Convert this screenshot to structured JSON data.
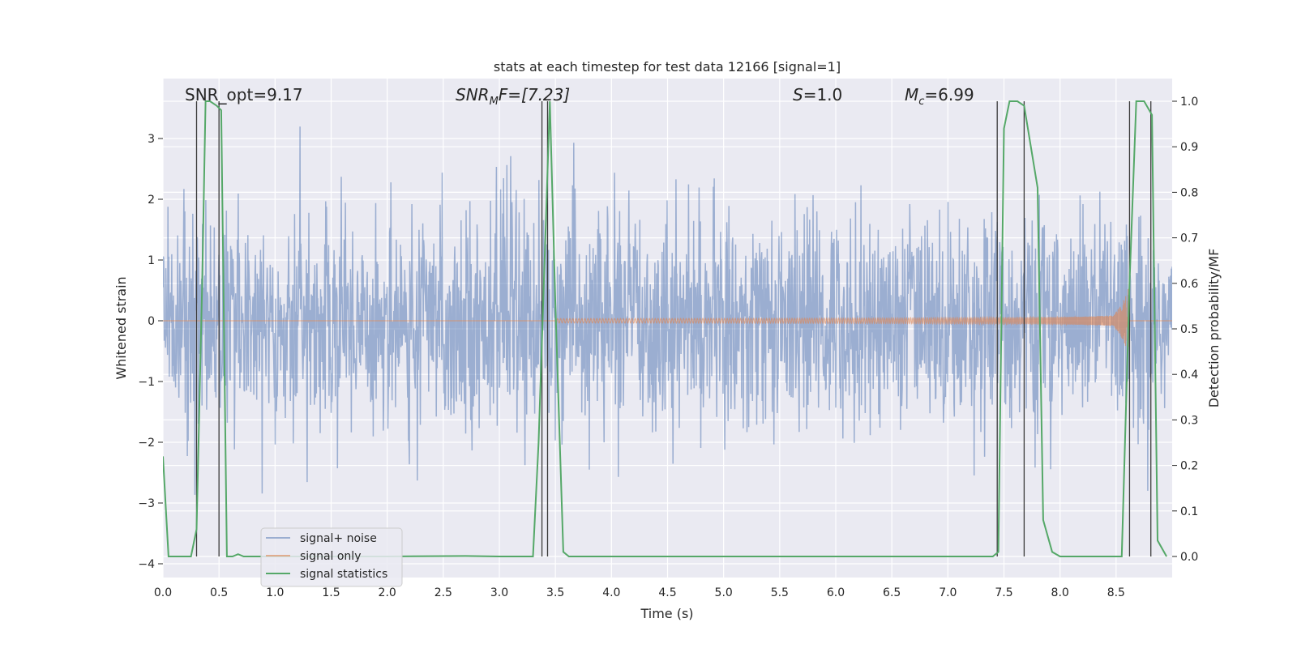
{
  "chart_data": {
    "type": "line",
    "title": "stats at each timestep for test data 12166 [signal=1]",
    "xlabel": "Time (s)",
    "ylabel": "Whitened strain",
    "ylabel_right": "Detection probability/MF",
    "xlim": [
      0,
      9.0
    ],
    "ylim": [
      -4.35,
      3.9
    ],
    "ylim_right": [
      -0.05,
      1.045
    ],
    "x_ticks": [
      "0.0",
      "0.5",
      "1.0",
      "1.5",
      "2.0",
      "2.5",
      "3.0",
      "3.5",
      "4.0",
      "4.5",
      "5.0",
      "5.5",
      "6.0",
      "6.5",
      "7.0",
      "7.5",
      "8.0",
      "8.5"
    ],
    "x_tick_values": [
      0,
      0.5,
      1.0,
      1.5,
      2.0,
      2.5,
      3.0,
      3.5,
      4.0,
      4.5,
      5.0,
      5.5,
      6.0,
      6.5,
      7.0,
      7.5,
      8.0,
      8.5
    ],
    "y_ticks": [
      "−4",
      "−3",
      "−2",
      "−1",
      "0",
      "1",
      "2",
      "3"
    ],
    "y_tick_values": [
      -4,
      -3,
      -2,
      -1,
      0,
      1,
      2,
      3
    ],
    "y2_ticks": [
      "0.0",
      "0.1",
      "0.2",
      "0.3",
      "0.4",
      "0.5",
      "0.6",
      "0.7",
      "0.8",
      "0.9",
      "1.0"
    ],
    "y2_tick_values": [
      0,
      0.1,
      0.2,
      0.3,
      0.4,
      0.5,
      0.6,
      0.7,
      0.8,
      0.9,
      1.0
    ],
    "annotations": [
      {
        "text": "SNR_opt=9.17",
        "x": 0.2
      },
      {
        "text_main": "SNR",
        "text_sub": "M",
        "text_rest": "F=[7.23]",
        "x": 2.6
      },
      {
        "text_main": "S",
        "text_rest": "=1.0",
        "x": 5.6
      },
      {
        "text_main": "M",
        "text_sub": "c",
        "text_rest": "=6.99",
        "x": 6.6
      }
    ],
    "legend": {
      "placement": "lower-left",
      "entries": [
        "signal+ noise",
        "signal only",
        "signal statistics"
      ]
    },
    "series": [
      {
        "name": "signal+ noise",
        "color": "#4c72b0",
        "description": "whitened noisy strain, amplitude ~±2, spikes to ~±3.5"
      },
      {
        "name": "signal only",
        "color": "#dd8452",
        "chirp_end_time": 8.62,
        "chirp_max_amplitude": 0.55
      },
      {
        "name": "signal statistics",
        "color": "#55a868",
        "x": [
          0.0,
          0.05,
          0.25,
          0.3,
          0.35,
          0.38,
          0.42,
          0.48,
          0.52,
          0.57,
          0.62,
          0.67,
          0.72,
          0.8,
          1.0,
          2.0,
          2.7,
          3.0,
          3.3,
          3.35,
          3.45,
          3.5,
          3.57,
          3.62,
          3.7,
          4.0,
          5.0,
          6.0,
          7.0,
          7.4,
          7.45,
          7.5,
          7.55,
          7.62,
          7.68,
          7.8,
          7.85,
          7.93,
          8.0,
          8.2,
          8.4,
          8.55,
          8.62,
          8.68,
          8.75,
          8.82,
          8.87,
          8.95
        ],
        "y": [
          0.22,
          0.0,
          0.0,
          0.06,
          0.6,
          1.0,
          1.0,
          0.99,
          0.98,
          0.0,
          0.0,
          0.005,
          0.0,
          0.0,
          0.0,
          0.0,
          0.001,
          0.0,
          0.0,
          0.25,
          1.0,
          0.55,
          0.01,
          0.0,
          0.0,
          0.0,
          0.0,
          0.0,
          0.0,
          0.0,
          0.01,
          0.94,
          1.0,
          1.0,
          0.99,
          0.81,
          0.08,
          0.01,
          0.0,
          0.0,
          0.0,
          0.0,
          0.6,
          1.0,
          1.0,
          0.97,
          0.035,
          0.0
        ]
      }
    ],
    "vertical_markers": [
      0.3,
      0.5,
      3.38,
      3.43,
      7.44,
      7.68,
      8.62,
      8.81
    ]
  }
}
